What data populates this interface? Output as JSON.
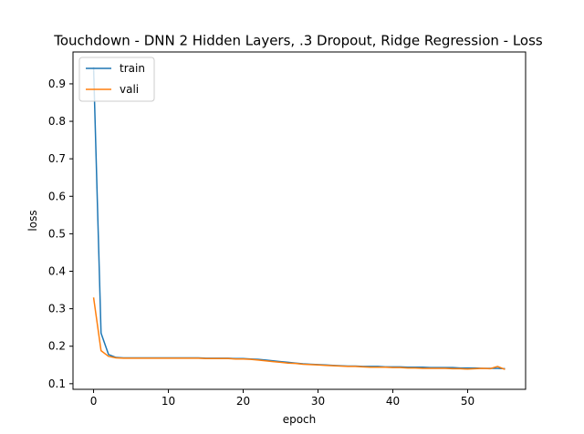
{
  "chart_data": {
    "type": "line",
    "title": "Touchdown - DNN 2 Hidden Layers, .3 Dropout, Ridge Regression - Loss",
    "xlabel": "epoch",
    "ylabel": "loss",
    "xlim": [
      -2.75,
      57.75
    ],
    "ylim": [
      0.085,
      0.985
    ],
    "x_ticks": [
      0,
      10,
      20,
      30,
      40,
      50
    ],
    "y_ticks": [
      0.1,
      0.2,
      0.3,
      0.4,
      0.5,
      0.6,
      0.7,
      0.8,
      0.9
    ],
    "legend_position": "top-left",
    "grid": false,
    "series": [
      {
        "name": "train",
        "color": "#1f77b4",
        "x": [
          0,
          1,
          2,
          3,
          4,
          5,
          6,
          7,
          8,
          9,
          10,
          11,
          12,
          13,
          14,
          15,
          16,
          17,
          18,
          19,
          20,
          21,
          22,
          23,
          24,
          25,
          26,
          27,
          28,
          29,
          30,
          31,
          32,
          33,
          34,
          35,
          36,
          37,
          38,
          39,
          40,
          41,
          42,
          43,
          44,
          45,
          46,
          47,
          48,
          49,
          50,
          51,
          52,
          53,
          54,
          55
        ],
        "values": [
          0.945,
          0.235,
          0.178,
          0.17,
          0.169,
          0.169,
          0.169,
          0.169,
          0.169,
          0.169,
          0.169,
          0.169,
          0.169,
          0.169,
          0.169,
          0.168,
          0.168,
          0.168,
          0.168,
          0.167,
          0.167,
          0.166,
          0.165,
          0.163,
          0.161,
          0.159,
          0.157,
          0.155,
          0.153,
          0.152,
          0.151,
          0.15,
          0.149,
          0.148,
          0.147,
          0.147,
          0.146,
          0.146,
          0.146,
          0.145,
          0.145,
          0.145,
          0.144,
          0.144,
          0.144,
          0.143,
          0.143,
          0.143,
          0.143,
          0.142,
          0.142,
          0.142,
          0.141,
          0.141,
          0.141,
          0.14
        ]
      },
      {
        "name": "vali",
        "color": "#ff7f0e",
        "x": [
          0,
          1,
          2,
          3,
          4,
          5,
          6,
          7,
          8,
          9,
          10,
          11,
          12,
          13,
          14,
          15,
          16,
          17,
          18,
          19,
          20,
          21,
          22,
          23,
          24,
          25,
          26,
          27,
          28,
          29,
          30,
          31,
          32,
          33,
          34,
          35,
          36,
          37,
          38,
          39,
          40,
          41,
          42,
          43,
          44,
          45,
          46,
          47,
          48,
          49,
          50,
          51,
          52,
          53,
          54,
          55
        ],
        "values": [
          0.33,
          0.188,
          0.173,
          0.169,
          0.168,
          0.168,
          0.168,
          0.168,
          0.168,
          0.168,
          0.168,
          0.168,
          0.168,
          0.168,
          0.168,
          0.167,
          0.167,
          0.167,
          0.167,
          0.166,
          0.166,
          0.165,
          0.163,
          0.161,
          0.159,
          0.157,
          0.155,
          0.154,
          0.152,
          0.151,
          0.15,
          0.149,
          0.148,
          0.147,
          0.146,
          0.146,
          0.145,
          0.144,
          0.144,
          0.144,
          0.143,
          0.143,
          0.142,
          0.142,
          0.141,
          0.141,
          0.141,
          0.141,
          0.14,
          0.14,
          0.139,
          0.14,
          0.141,
          0.14,
          0.146,
          0.138
        ]
      }
    ]
  }
}
